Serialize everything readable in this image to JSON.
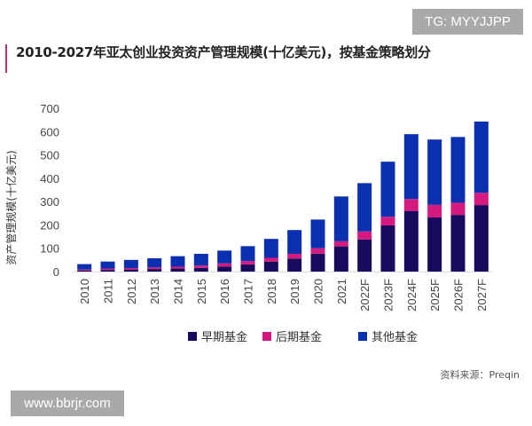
{
  "watermarks": {
    "top": "TG: MYYJJPP",
    "bottom": "www.bbrjr.com"
  },
  "chart_data": {
    "type": "bar",
    "stacked": true,
    "title": "2010-2027年亚太创业投资资产管理规模(十亿美元)，按基金策略划分",
    "xlabel": "",
    "ylabel": "资产管理规模(十亿美元)",
    "ylim": [
      0,
      700
    ],
    "yticks": [
      0,
      100,
      200,
      300,
      400,
      500,
      600,
      700
    ],
    "grid": false,
    "legend_position": "bottom",
    "categories": [
      "2010",
      "2011",
      "2012",
      "2013",
      "2014",
      "2015",
      "2016",
      "2017",
      "2018",
      "2019",
      "2020",
      "2021",
      "2022F",
      "2023F",
      "2024F",
      "2025F",
      "2026F",
      "2027F"
    ],
    "series": [
      {
        "name": "早期基金",
        "color": "#1a0a5e",
        "values": [
          5,
          7,
          9,
          11,
          13,
          16,
          22,
          31,
          43,
          56,
          77,
          108,
          138,
          198,
          260,
          232,
          243,
          285
        ]
      },
      {
        "name": "后期基金",
        "color": "#d6197f",
        "values": [
          4,
          5,
          6,
          7,
          8,
          10,
          13,
          14,
          16,
          20,
          23,
          22,
          34,
          37,
          51,
          54,
          52,
          53
        ]
      },
      {
        "name": "其他基金",
        "color": "#0a2fb0",
        "values": [
          23,
          31,
          35,
          39,
          45,
          50,
          55,
          64,
          81,
          102,
          123,
          192,
          207,
          236,
          278,
          280,
          282,
          305
        ]
      }
    ],
    "source": "资料来源：Preqin"
  }
}
